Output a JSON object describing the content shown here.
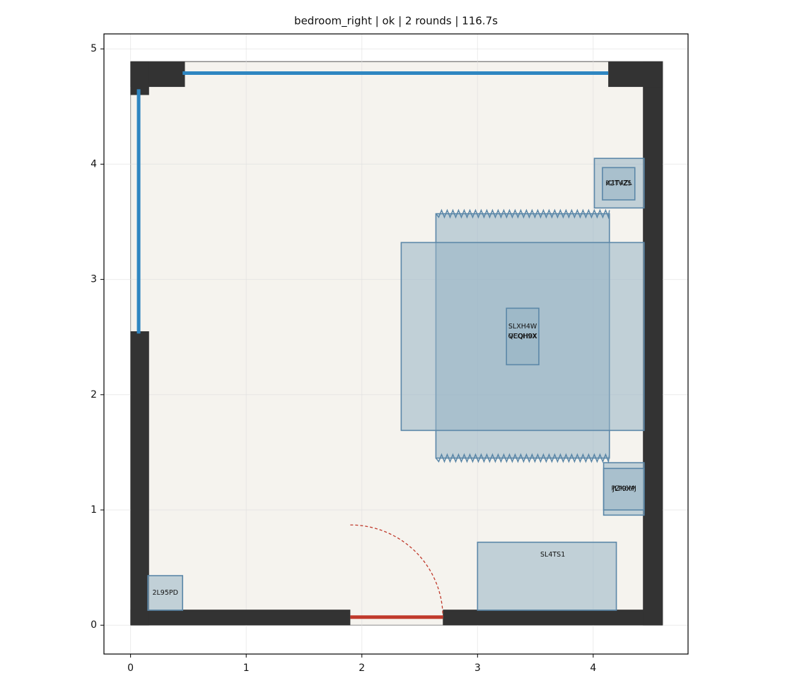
{
  "chart_data": {
    "type": "floorplan",
    "title": "bedroom_right | ok | 2 rounds | 116.7s",
    "xlim": [
      -0.23,
      4.82
    ],
    "ylim": [
      -0.25,
      5.13
    ],
    "xticks": [
      0,
      1,
      2,
      3,
      4
    ],
    "yticks": [
      0,
      1,
      2,
      3,
      4,
      5
    ],
    "grid": true,
    "floor": [
      0,
      0,
      4.6,
      4.89
    ],
    "walls": [
      [
        0,
        0,
        1.9,
        0.135
      ],
      [
        2.7,
        0,
        1.9,
        0.135
      ],
      [
        4.43,
        0,
        0.17,
        4.89
      ],
      [
        0,
        4.67,
        0.47,
        0.22
      ],
      [
        4.13,
        4.67,
        0.47,
        0.22
      ],
      [
        0,
        0,
        0.16,
        2.55
      ],
      [
        0,
        4.6,
        0.16,
        0.29
      ]
    ],
    "windows": [
      [
        0.45,
        4.79,
        4.13,
        4.79
      ],
      [
        0.07,
        2.53,
        0.07,
        4.65
      ]
    ],
    "door": {
      "hinge": [
        1.9,
        0.07
      ],
      "width": 0.8
    },
    "items": [
      {
        "label": "SLXH4W",
        "rect": [
          2.64,
          1.45,
          1.5,
          2.12
        ],
        "label_at": [
          3.39,
          2.59
        ],
        "fringe": true
      },
      {
        "label": "VEQH9X",
        "rect": [
          2.34,
          1.69,
          2.1,
          1.63
        ]
      },
      {
        "label": "QCQH0X",
        "rect": [
          3.25,
          2.26,
          0.28,
          0.49
        ]
      },
      {
        "label": "X1T4ZL",
        "rect": [
          4.01,
          3.62,
          0.43,
          0.43
        ]
      },
      {
        "label": "K2TVZ5",
        "rect": [
          4.08,
          3.69,
          0.28,
          0.28
        ]
      },
      {
        "label": "PZK6MJ",
        "rect": [
          4.09,
          0.955,
          0.35,
          0.455
        ]
      },
      {
        "label": "JLF9XP",
        "rect": [
          4.09,
          1.0,
          0.35,
          0.36
        ]
      },
      {
        "label": "SL4TS1",
        "rect": [
          3.0,
          0.13,
          1.2,
          0.59
        ],
        "label_at": [
          3.65,
          0.61
        ]
      },
      {
        "label": "2L95PD",
        "rect": [
          0.15,
          0.13,
          0.3,
          0.3
        ]
      }
    ]
  }
}
